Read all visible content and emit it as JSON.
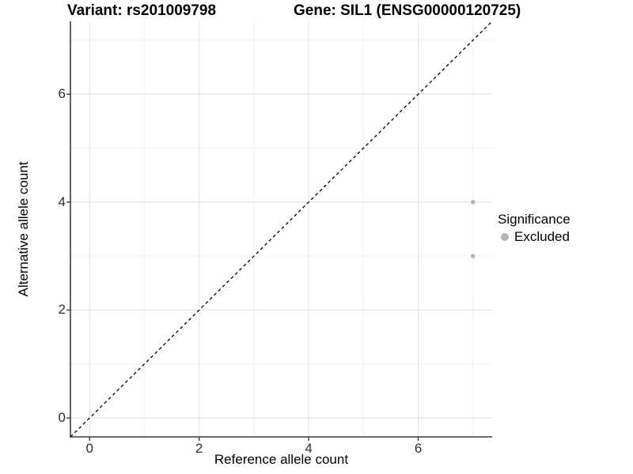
{
  "chart_data": {
    "type": "scatter",
    "title_variant": "Variant: rs201009798",
    "title_gene": "Gene: SIL1 (ENSG00000120725)",
    "xlabel": "Reference allele count",
    "ylabel": "Alternative allele count",
    "xlim": [
      -0.35,
      7.35
    ],
    "ylim": [
      -0.35,
      7.35
    ],
    "x_ticks": [
      0,
      2,
      4,
      6
    ],
    "y_ticks": [
      0,
      2,
      4,
      6
    ],
    "x_minor_ticks": [
      1,
      3,
      5,
      7
    ],
    "y_minor_ticks": [
      1,
      3,
      5,
      7
    ],
    "grid": true,
    "identity_line": {
      "style": "dashed",
      "color": "#000000",
      "from": -0.35,
      "to": 7.35
    },
    "series": [
      {
        "name": "Excluded",
        "color": "#b4b4b4",
        "points": [
          {
            "x": 7,
            "y": 4
          },
          {
            "x": 7,
            "y": 3
          }
        ]
      }
    ],
    "legend": {
      "title": "Significance",
      "position": "right",
      "entries": [
        {
          "label": "Excluded",
          "color": "#b4b4b4"
        }
      ]
    },
    "colors": {
      "axis_line": "#3a3a3a",
      "grid_major": "#e2e2e2",
      "grid_minor": "#efefef",
      "tick_text": "#2e2e2e",
      "point": "#b4b4b4"
    }
  }
}
